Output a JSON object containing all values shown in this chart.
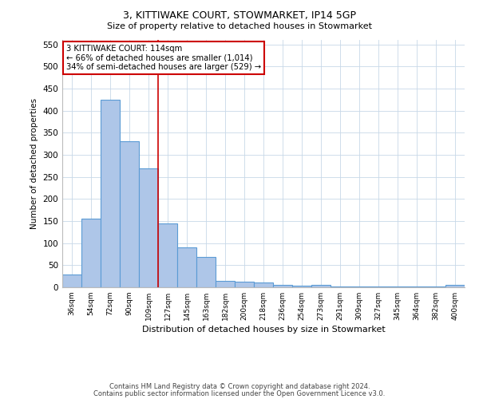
{
  "title": "3, KITTIWAKE COURT, STOWMARKET, IP14 5GP",
  "subtitle": "Size of property relative to detached houses in Stowmarket",
  "xlabel": "Distribution of detached houses by size in Stowmarket",
  "ylabel": "Number of detached properties",
  "bar_labels": [
    "36sqm",
    "54sqm",
    "72sqm",
    "90sqm",
    "109sqm",
    "127sqm",
    "145sqm",
    "163sqm",
    "182sqm",
    "200sqm",
    "218sqm",
    "236sqm",
    "254sqm",
    "273sqm",
    "291sqm",
    "309sqm",
    "327sqm",
    "345sqm",
    "364sqm",
    "382sqm",
    "400sqm"
  ],
  "bar_values": [
    29,
    155,
    425,
    330,
    270,
    145,
    90,
    68,
    15,
    12,
    10,
    5,
    3,
    5,
    2,
    1,
    1,
    1,
    1,
    1,
    5
  ],
  "bar_color": "#aec6e8",
  "bar_edge_color": "#5b9bd5",
  "property_line_bin": 4,
  "annotation_text": "3 KITTIWAKE COURT: 114sqm\n← 66% of detached houses are smaller (1,014)\n34% of semi-detached houses are larger (529) →",
  "annotation_box_color": "#ffffff",
  "annotation_box_edge": "#cc0000",
  "vline_color": "#cc0000",
  "footer1": "Contains HM Land Registry data © Crown copyright and database right 2024.",
  "footer2": "Contains public sector information licensed under the Open Government Licence v3.0.",
  "ylim": [
    0,
    560
  ],
  "yticks": [
    0,
    50,
    100,
    150,
    200,
    250,
    300,
    350,
    400,
    450,
    500,
    550
  ],
  "background_color": "#ffffff",
  "grid_color": "#c8d8e8"
}
